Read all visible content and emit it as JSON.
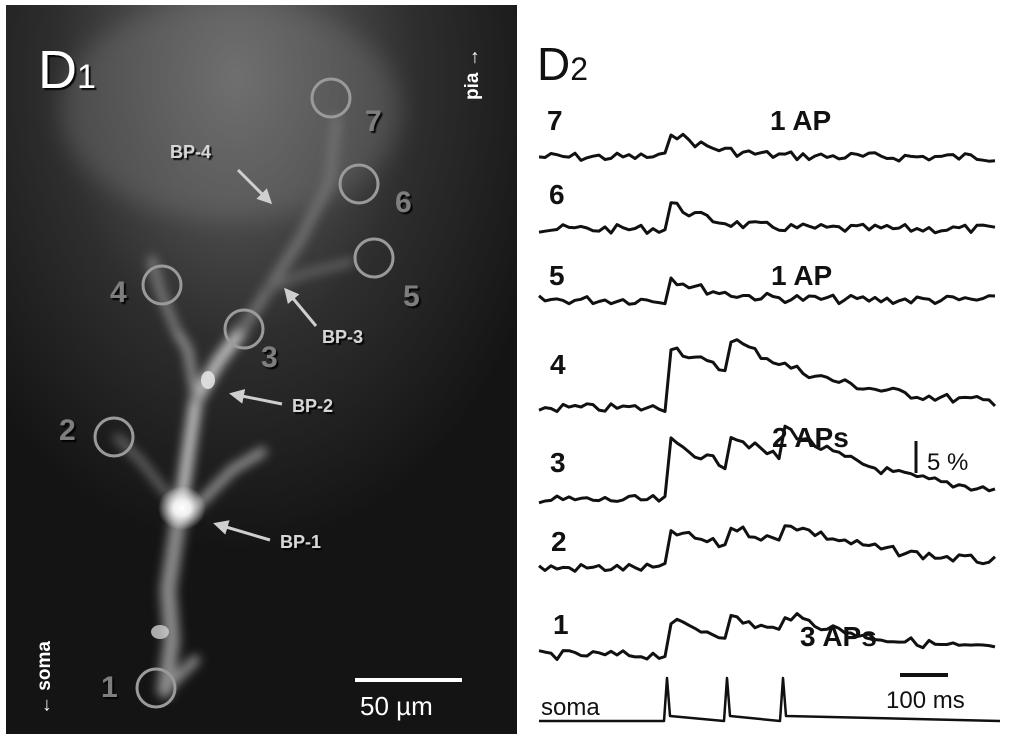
{
  "panel_d1": {
    "panel_label": "D",
    "panel_label_sub": "1",
    "orientation_top": "pia →",
    "orientation_bottom": "← soma",
    "scale_bar_label": "50 µm",
    "roi_labels": [
      "1",
      "2",
      "3",
      "4",
      "5",
      "6",
      "7"
    ],
    "branch_point_labels": [
      "BP-1",
      "BP-2",
      "BP-3",
      "BP-4"
    ]
  },
  "panel_d2": {
    "panel_label": "D",
    "panel_label_sub": "2",
    "trace_labels": [
      "7",
      "6",
      "5",
      "4",
      "3",
      "2",
      "1"
    ],
    "condition_labels": [
      "1 AP",
      "1 AP",
      "2 APs",
      "3 APs"
    ],
    "amplitude_scale_label": "5 %",
    "time_scale_label": "100 ms",
    "soma_label": "soma"
  }
}
